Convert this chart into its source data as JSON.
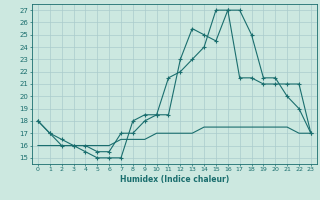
{
  "xlabel": "Humidex (Indice chaleur)",
  "background_color": "#cce8e0",
  "grid_color": "#aacccc",
  "line_color": "#1a6e6e",
  "xlim": [
    -0.5,
    23.5
  ],
  "ylim": [
    14.5,
    27.5
  ],
  "xticks": [
    0,
    1,
    2,
    3,
    4,
    5,
    6,
    7,
    8,
    9,
    10,
    11,
    12,
    13,
    14,
    15,
    16,
    17,
    18,
    19,
    20,
    21,
    22,
    23
  ],
  "yticks": [
    15,
    16,
    17,
    18,
    19,
    20,
    21,
    22,
    23,
    24,
    25,
    26,
    27
  ],
  "line1_x": [
    0,
    1,
    2,
    3,
    4,
    5,
    6,
    7,
    8,
    9,
    10,
    11,
    12,
    13,
    14,
    15,
    16,
    17,
    18,
    19,
    20,
    21,
    22,
    23
  ],
  "line1_y": [
    18,
    17,
    16,
    16,
    15.5,
    15,
    15,
    15,
    18,
    18.5,
    18.5,
    18.5,
    23,
    25.5,
    25,
    24.5,
    27,
    27,
    25,
    21.5,
    21.5,
    20,
    19,
    17
  ],
  "line2_x": [
    0,
    1,
    2,
    3,
    4,
    5,
    6,
    7,
    8,
    9,
    10,
    11,
    12,
    13,
    14,
    15,
    16,
    17,
    18,
    19,
    20,
    21,
    22,
    23
  ],
  "line2_y": [
    18,
    17,
    16.5,
    16,
    16,
    15.5,
    15.5,
    17,
    17,
    18,
    18.5,
    21.5,
    22,
    23,
    24,
    27,
    27,
    21.5,
    21.5,
    21,
    21,
    21,
    21,
    17
  ],
  "line3_x": [
    0,
    1,
    2,
    3,
    4,
    5,
    6,
    7,
    8,
    9,
    10,
    11,
    12,
    13,
    14,
    15,
    16,
    17,
    18,
    19,
    20,
    21,
    22,
    23
  ],
  "line3_y": [
    16,
    16,
    16,
    16,
    16,
    16,
    16,
    16.5,
    16.5,
    16.5,
    17,
    17,
    17,
    17,
    17.5,
    17.5,
    17.5,
    17.5,
    17.5,
    17.5,
    17.5,
    17.5,
    17,
    17
  ]
}
